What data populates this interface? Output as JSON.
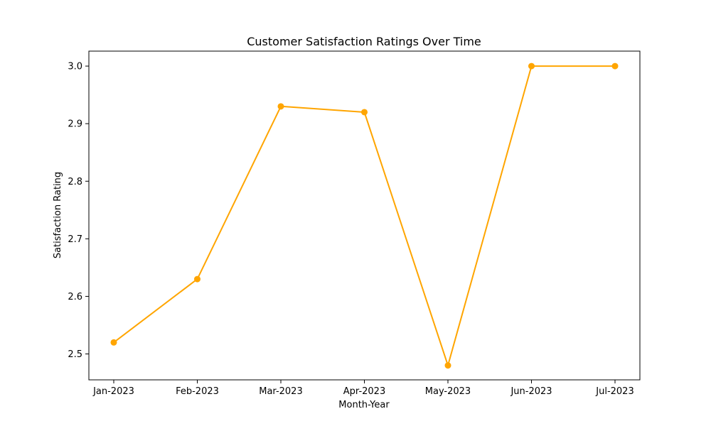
{
  "chart_data": {
    "type": "line",
    "title": "Customer Satisfaction Ratings Over Time",
    "xlabel": "Month-Year",
    "ylabel": "Satisfaction Rating",
    "categories": [
      "Jan-2023",
      "Feb-2023",
      "Mar-2023",
      "Apr-2023",
      "May-2023",
      "Jun-2023",
      "Jul-2023"
    ],
    "series": [
      {
        "values": [
          2.52,
          2.63,
          2.93,
          2.92,
          2.48,
          3.0,
          3.0
        ],
        "color": "#FFA500",
        "marker": "circle"
      }
    ],
    "ylim": [
      2.455,
      3.026
    ],
    "yticks": [
      "2.5",
      "2.6",
      "2.7",
      "2.8",
      "2.9",
      "3.0"
    ],
    "grid": false,
    "legend": "none"
  }
}
